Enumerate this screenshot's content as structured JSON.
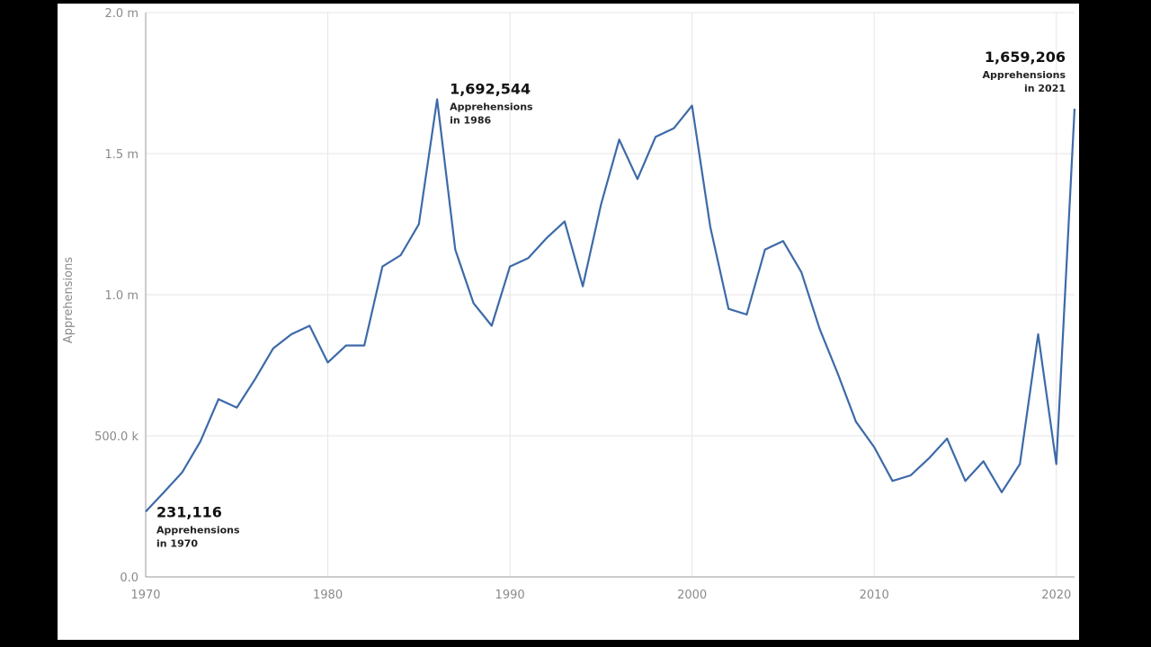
{
  "chart_data": {
    "type": "line",
    "title": "",
    "xlabel": "",
    "ylabel": "Apprehensions",
    "xlim": [
      1970,
      2021
    ],
    "ylim": [
      0,
      2000000
    ],
    "grid": true,
    "x_ticks": [
      {
        "value": 1970,
        "label": "1970"
      },
      {
        "value": 1980,
        "label": "1980"
      },
      {
        "value": 1990,
        "label": "1990"
      },
      {
        "value": 2000,
        "label": "2000"
      },
      {
        "value": 2010,
        "label": "2010"
      },
      {
        "value": 2020,
        "label": "2020"
      }
    ],
    "y_ticks": [
      {
        "value": 0,
        "label": "0.0"
      },
      {
        "value": 500000,
        "label": "500.0 k"
      },
      {
        "value": 1000000,
        "label": "1.0 m"
      },
      {
        "value": 1500000,
        "label": "1.5 m"
      },
      {
        "value": 2000000,
        "label": "2.0 m"
      }
    ],
    "series": [
      {
        "color": "#3d6aa8",
        "points": [
          [
            1970,
            231116
          ],
          [
            1971,
            300000
          ],
          [
            1972,
            370000
          ],
          [
            1973,
            480000
          ],
          [
            1974,
            630000
          ],
          [
            1975,
            600000
          ],
          [
            1976,
            700000
          ],
          [
            1977,
            810000
          ],
          [
            1978,
            860000
          ],
          [
            1979,
            890000
          ],
          [
            1980,
            760000
          ],
          [
            1981,
            820000
          ],
          [
            1982,
            820000
          ],
          [
            1983,
            1100000
          ],
          [
            1984,
            1140000
          ],
          [
            1985,
            1250000
          ],
          [
            1986,
            1692544
          ],
          [
            1987,
            1160000
          ],
          [
            1988,
            970000
          ],
          [
            1989,
            890000
          ],
          [
            1990,
            1100000
          ],
          [
            1991,
            1130000
          ],
          [
            1992,
            1200000
          ],
          [
            1993,
            1260000
          ],
          [
            1994,
            1030000
          ],
          [
            1995,
            1320000
          ],
          [
            1996,
            1550000
          ],
          [
            1997,
            1410000
          ],
          [
            1998,
            1560000
          ],
          [
            1999,
            1590000
          ],
          [
            2000,
            1670000
          ],
          [
            2001,
            1240000
          ],
          [
            2002,
            950000
          ],
          [
            2003,
            930000
          ],
          [
            2004,
            1160000
          ],
          [
            2005,
            1190000
          ],
          [
            2006,
            1080000
          ],
          [
            2007,
            880000
          ],
          [
            2008,
            720000
          ],
          [
            2009,
            550000
          ],
          [
            2010,
            460000
          ],
          [
            2011,
            340000
          ],
          [
            2012,
            360000
          ],
          [
            2013,
            420000
          ],
          [
            2014,
            490000
          ],
          [
            2015,
            340000
          ],
          [
            2016,
            410000
          ],
          [
            2017,
            300000
          ],
          [
            2018,
            400000
          ],
          [
            2019,
            860000
          ],
          [
            2020,
            400000
          ],
          [
            2021,
            1659206
          ]
        ]
      }
    ],
    "annotations": [
      {
        "value": "231,116",
        "line1": "Apprehensions",
        "line2": "in 1970",
        "x": 1970,
        "y": 231116,
        "align": "start"
      },
      {
        "value": "1,692,544",
        "line1": "Apprehensions",
        "line2": "in 1986",
        "x": 1986,
        "y": 1692544,
        "align": "start"
      },
      {
        "value": "1,659,206",
        "line1": "Apprehensions",
        "line2": "in 2021",
        "x": 2021,
        "y": 1659206,
        "align": "end"
      }
    ]
  }
}
